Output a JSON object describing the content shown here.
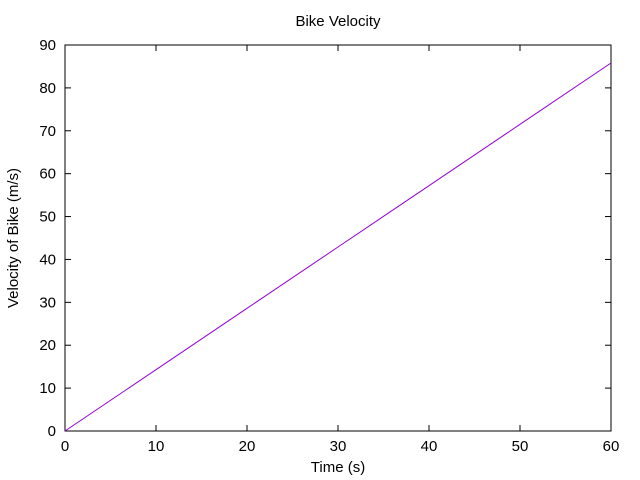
{
  "chart_data": {
    "type": "line",
    "title": "Bike Velocity",
    "xlabel": "Time (s)",
    "ylabel": "Velocity of Bike (m/s)",
    "xlim": [
      0,
      60
    ],
    "ylim": [
      0,
      90
    ],
    "xticks": [
      0,
      10,
      20,
      30,
      40,
      50,
      60
    ],
    "yticks": [
      0,
      10,
      20,
      30,
      40,
      50,
      60,
      70,
      80,
      90
    ],
    "grid": false,
    "series": [
      {
        "color": "#9400d3",
        "x": [
          0,
          10,
          20,
          30,
          40,
          50,
          60
        ],
        "y": [
          0,
          14.3,
          28.6,
          42.9,
          57.2,
          71.5,
          85.8
        ]
      }
    ]
  }
}
